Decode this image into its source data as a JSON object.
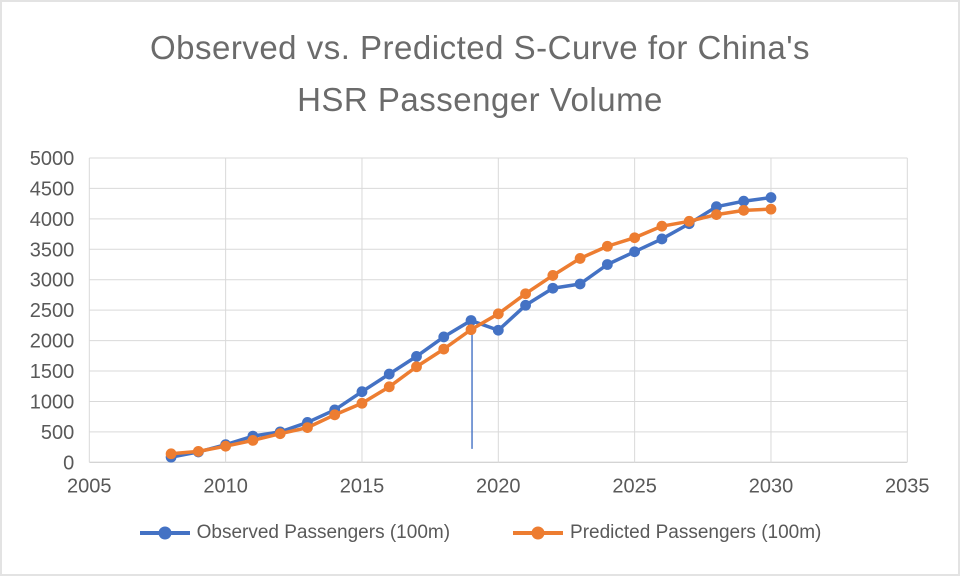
{
  "title_lines": [
    "Observed vs. Predicted S-Curve for China's",
    "HSR Passenger Volume"
  ],
  "colors": {
    "observed": "#4472C4",
    "predicted": "#ED7D31",
    "grid": "#D9D9D9",
    "axis_line": "#C6C6C6",
    "tick_text": "#595959",
    "title_text": "#6B6B6B",
    "background": "#FFFFFF",
    "frame_border": "#E3E3E3"
  },
  "legend": [
    {
      "label": "Observed Passengers (100m)",
      "color": "#4472C4"
    },
    {
      "label": "Predicted Passengers (100m)",
      "color": "#ED7D31"
    }
  ],
  "chart_data": {
    "type": "line",
    "title": "Observed vs. Predicted S-Curve for China's HSR Passenger Volume",
    "xlabel": "",
    "ylabel": "",
    "grid": true,
    "legend_position": "bottom",
    "x_axis": {
      "min": 2005,
      "max": 2035,
      "tick_step": 5,
      "tick_labels": [
        "2005",
        "2010",
        "2015",
        "2020",
        "2025",
        "2030",
        "2035"
      ]
    },
    "y_axis": {
      "min": 0,
      "max": 5000,
      "tick_step": 500,
      "tick_labels": [
        "0",
        "500",
        "1000",
        "1500",
        "2000",
        "2500",
        "3000",
        "3500",
        "4000",
        "4500",
        "5000"
      ]
    },
    "x": [
      2008,
      2009,
      2010,
      2011,
      2012,
      2013,
      2014,
      2015,
      2016,
      2017,
      2018,
      2019,
      2020,
      2021,
      2022,
      2023,
      2024,
      2025,
      2026,
      2027,
      2028,
      2029,
      2030
    ],
    "series": [
      {
        "name": "Observed Passengers (100m)",
        "color": "#4472C4",
        "marker": "circle",
        "values": [
          85,
          170,
          290,
          430,
          500,
          655,
          860,
          1160,
          1450,
          1740,
          2060,
          2330,
          2170,
          2580,
          2860,
          2930,
          3250,
          3460,
          3670,
          3920,
          4200,
          4290,
          4350
        ]
      },
      {
        "name": "Predicted Passengers (100m)",
        "color": "#ED7D31",
        "marker": "circle",
        "values": [
          140,
          180,
          265,
          360,
          470,
          570,
          780,
          970,
          1240,
          1570,
          1860,
          2180,
          2440,
          2770,
          3070,
          3350,
          3550,
          3690,
          3880,
          3960,
          4070,
          4140,
          4160
        ]
      }
    ],
    "anomaly_drop_line": {
      "x": 2019,
      "y_from": 2330,
      "y_to": 220,
      "series": "Observed Passengers (100m)"
    }
  }
}
